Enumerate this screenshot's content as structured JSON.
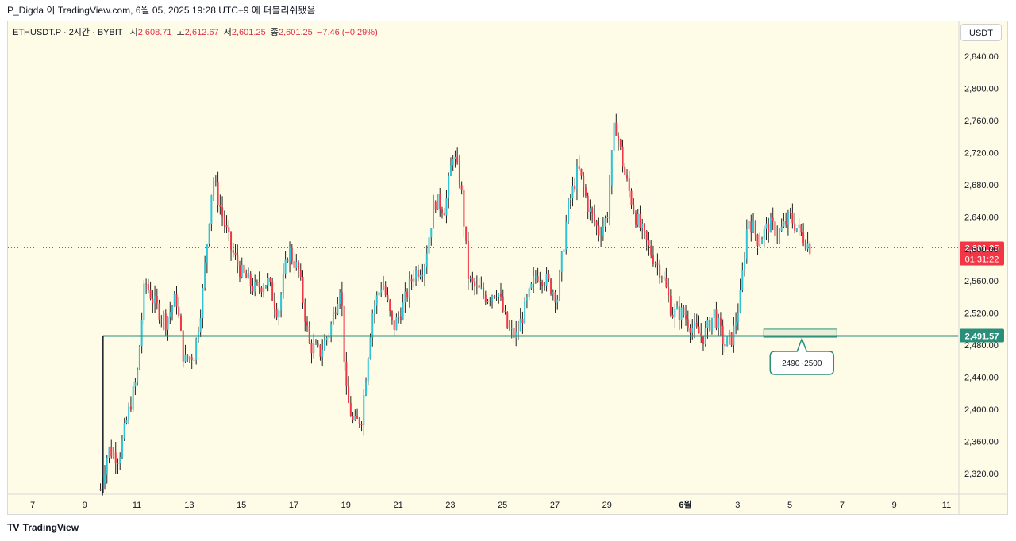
{
  "header": {
    "caption": "P_Digda 이 TradingView.com, 6월 05, 2025 19:28 UTC+9 에 퍼블리쉬됐음"
  },
  "legend": {
    "symbol": "ETHUSDT.P · 2시간 · BYBIT",
    "open_label": "시",
    "open": "2,608.71",
    "high_label": "고",
    "high": "2,612.67",
    "low_label": "저",
    "low": "2,601.25",
    "close_label": "종",
    "close": "2,601.25",
    "change": "−7.46 (−0.29%)"
  },
  "currency_button": "USDT",
  "footer": {
    "logo": "TV",
    "brand": "TradingView"
  },
  "chart_data": {
    "type": "candlestick",
    "symbol": "ETHUSDT.P",
    "interval": "2시간",
    "exchange": "BYBIT",
    "ylim": [
      2290,
      2880
    ],
    "y_ticks": [
      2320,
      2360,
      2400,
      2440,
      2480,
      2520,
      2560,
      2600,
      2640,
      2680,
      2720,
      2760,
      2800,
      2840
    ],
    "y_tick_labels": [
      "2,320.00",
      "2,360.00",
      "2,400.00",
      "2,440.00",
      "2,480.00",
      "2,520.00",
      "2,560.00",
      "2,600.00",
      "2,640.00",
      "2,680.00",
      "2,720.00",
      "2,760.00",
      "2,800.00",
      "2,840.00"
    ],
    "x_day_range": [
      6.0,
      11.5
    ],
    "x_ticks": [
      {
        "label": "7",
        "day": 7
      },
      {
        "label": "9",
        "day": 9
      },
      {
        "label": "11",
        "day": 11
      },
      {
        "label": "13",
        "day": 13
      },
      {
        "label": "15",
        "day": 15
      },
      {
        "label": "17",
        "day": 17
      },
      {
        "label": "19",
        "day": 19
      },
      {
        "label": "21",
        "day": 21
      },
      {
        "label": "23",
        "day": 23
      },
      {
        "label": "25",
        "day": 25
      },
      {
        "label": "27",
        "day": 27
      },
      {
        "label": "29",
        "day": 29
      },
      {
        "label": "6월",
        "day": 32
      },
      {
        "label": "3",
        "day": 34
      },
      {
        "label": "5",
        "day": 36
      },
      {
        "label": "7",
        "day": 38
      },
      {
        "label": "9",
        "day": 40
      },
      {
        "label": "11",
        "day": 42
      }
    ],
    "x_day_offset_note": "",
    "price_path_days": [
      9.6,
      9.9,
      10.3,
      10.7,
      11.0,
      11.3,
      11.7,
      12.1,
      12.5,
      12.8,
      13.2,
      13.5,
      13.9,
      14.2,
      14.6,
      15.0,
      15.5,
      16.0,
      16.4,
      16.8,
      17.2,
      17.6,
      18.0,
      18.4,
      18.8,
      19.0,
      19.3,
      19.6,
      20.0,
      20.4,
      20.8,
      21.2,
      21.6,
      22.0,
      22.4,
      22.8,
      23.1,
      23.4,
      23.7,
      24.0,
      24.4,
      24.8,
      25.2,
      25.5,
      25.9,
      26.3,
      26.7,
      27.1,
      27.5,
      27.9,
      28.3,
      28.7,
      29.0,
      29.3,
      29.7,
      30.1,
      30.6,
      31.1,
      31.5,
      31.9,
      32.3,
      32.7,
      33.1,
      33.5,
      33.8,
      34.1,
      34.4,
      34.8,
      35.2,
      35.6,
      36.0,
      36.4,
      36.8
    ],
    "price_path": [
      2300,
      2350,
      2340,
      2400,
      2440,
      2560,
      2530,
      2510,
      2540,
      2460,
      2470,
      2540,
      2690,
      2650,
      2600,
      2570,
      2550,
      2560,
      2520,
      2600,
      2570,
      2480,
      2470,
      2500,
      2560,
      2420,
      2380,
      2390,
      2520,
      2560,
      2500,
      2530,
      2570,
      2580,
      2660,
      2650,
      2720,
      2680,
      2560,
      2550,
      2540,
      2550,
      2500,
      2490,
      2530,
      2570,
      2560,
      2540,
      2650,
      2700,
      2650,
      2620,
      2640,
      2760,
      2690,
      2640,
      2600,
      2570,
      2520,
      2520,
      2500,
      2490,
      2520,
      2480,
      2490,
      2540,
      2640,
      2610,
      2630,
      2620,
      2640,
      2620,
      2601
    ],
    "current_price": {
      "value": 2601.25,
      "label": "2,601.25",
      "countdown": "01:31:22",
      "color": "#f23645"
    },
    "support_line": {
      "value": 2491.57,
      "label": "2,491.57",
      "start_day": 9.7,
      "color": "#2a8f7a"
    },
    "zone": {
      "low": 2490,
      "high": 2500,
      "start_day": 35.0,
      "end_day": 37.8,
      "label": "2490~2500"
    },
    "colors": {
      "up": "#2ec3d6",
      "down": "#f23645",
      "wick": "#222222",
      "background": "#fefbe6"
    }
  }
}
